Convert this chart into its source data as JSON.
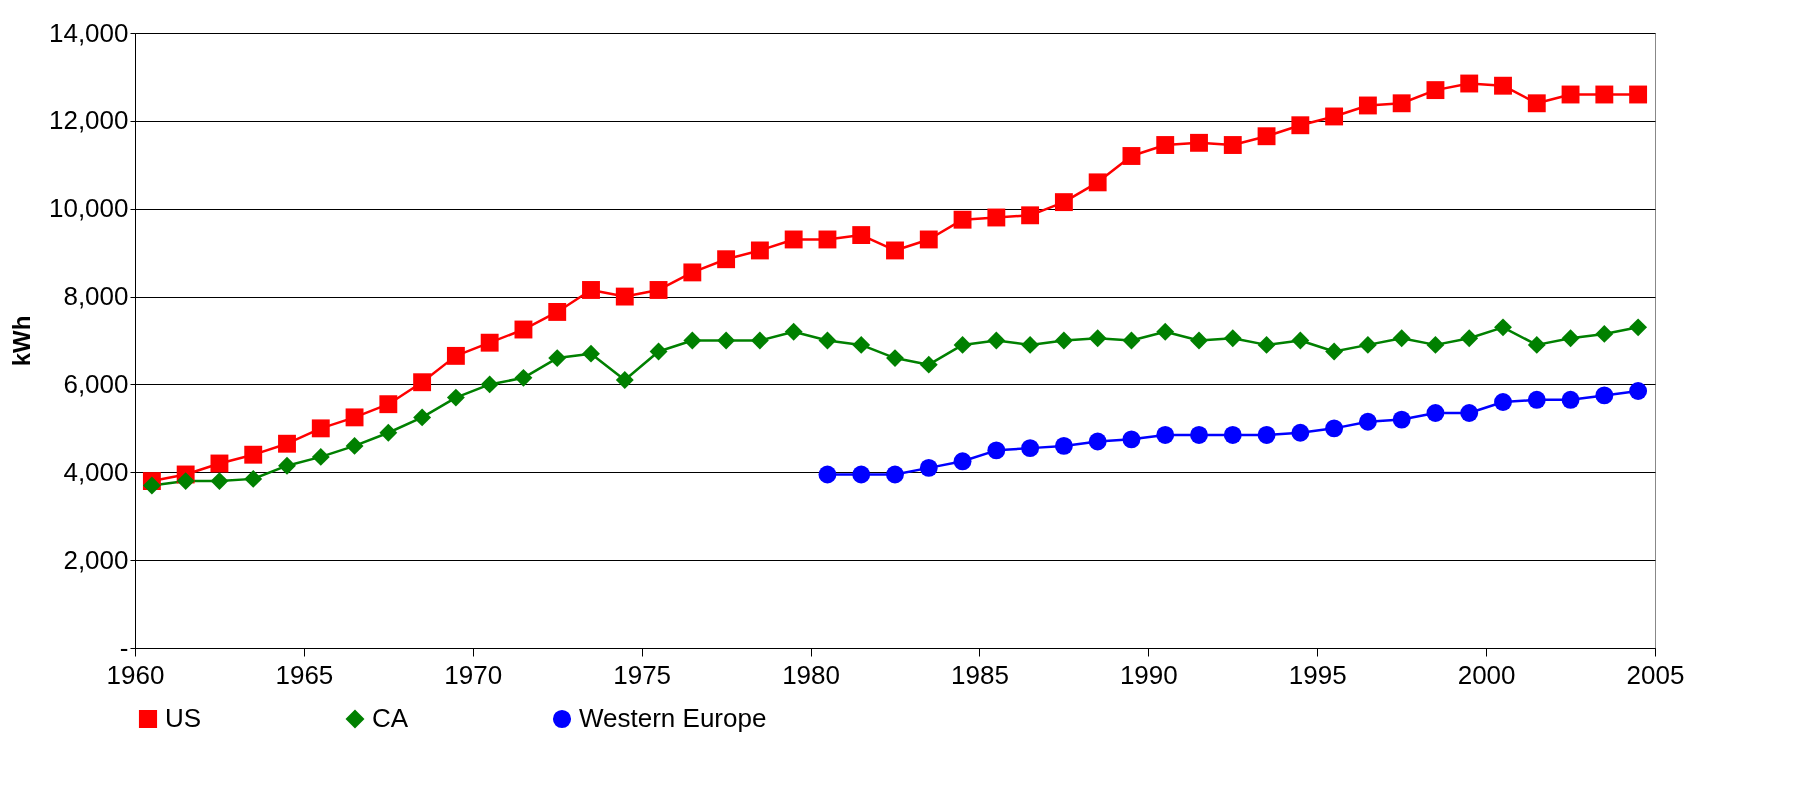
{
  "chart_data": {
    "type": "line",
    "ylabel": "kWh",
    "xlim": [
      1960,
      2005
    ],
    "xticks": [
      1960,
      1965,
      1970,
      1975,
      1980,
      1985,
      1990,
      1995,
      2000,
      2005
    ],
    "ylim": [
      0,
      14000
    ],
    "yticks": [
      {
        "value": 0,
        "label": "-"
      },
      {
        "value": 2000,
        "label": "2,000"
      },
      {
        "value": 4000,
        "label": "4,000"
      },
      {
        "value": 6000,
        "label": "6,000"
      },
      {
        "value": 8000,
        "label": "8,000"
      },
      {
        "value": 10000,
        "label": "10,000"
      },
      {
        "value": 12000,
        "label": "12,000"
      },
      {
        "value": 14000,
        "label": "14,000"
      }
    ],
    "grid": "y",
    "legend": "bottom",
    "x": [
      1960.5,
      1961.5,
      1962.5,
      1963.5,
      1964.5,
      1965.5,
      1966.5,
      1967.5,
      1968.5,
      1969.5,
      1970.5,
      1971.5,
      1972.5,
      1973.5,
      1974.5,
      1975.5,
      1976.5,
      1977.5,
      1978.5,
      1979.5,
      1980.5,
      1981.5,
      1982.5,
      1983.5,
      1984.5,
      1985.5,
      1986.5,
      1987.5,
      1988.5,
      1989.5,
      1990.5,
      1991.5,
      1992.5,
      1993.5,
      1994.5,
      1995.5,
      1996.5,
      1997.5,
      1998.5,
      1999.5,
      2000.5,
      2001.5,
      2002.5,
      2003.5,
      2004.5
    ],
    "series": [
      {
        "name": "US",
        "color": "#ff0000",
        "marker": "square",
        "values": [
          3800,
          3950,
          4200,
          4400,
          4650,
          5000,
          5250,
          5550,
          6050,
          6650,
          6950,
          7250,
          7650,
          8150,
          8000,
          8150,
          8550,
          8850,
          9050,
          9300,
          9300,
          9400,
          9050,
          9300,
          9750,
          9800,
          9850,
          10150,
          10600,
          11200,
          11450,
          11500,
          11450,
          11650,
          11900,
          12100,
          12350,
          12400,
          12700,
          12850,
          12800,
          12400,
          12600,
          12600,
          12600
        ]
      },
      {
        "name": "CA",
        "color": "#008000",
        "marker": "diamond",
        "values": [
          3700,
          3800,
          3800,
          3850,
          4150,
          4350,
          4600,
          4900,
          5250,
          5700,
          6000,
          6150,
          6600,
          6700,
          6100,
          6750,
          7000,
          7000,
          7000,
          7200,
          7000,
          6900,
          6600,
          6450,
          6900,
          7000,
          6900,
          7000,
          7050,
          7000,
          7200,
          7000,
          7050,
          6900,
          7000,
          6750,
          6900,
          7050,
          6900,
          7050,
          7300,
          6900,
          7050,
          7150,
          7300
        ]
      },
      {
        "name": "Western Europe",
        "color": "#0000ff",
        "marker": "circle",
        "x": [
          1980.5,
          1981.5,
          1982.5,
          1983.5,
          1984.5,
          1985.5,
          1986.5,
          1987.5,
          1988.5,
          1989.5,
          1990.5,
          1991.5,
          1992.5,
          1993.5,
          1994.5,
          1995.5,
          1996.5,
          1997.5,
          1998.5,
          1999.5,
          2000.5,
          2001.5,
          2002.5,
          2003.5,
          2004.5
        ],
        "values": [
          3950,
          3950,
          3950,
          4100,
          4250,
          4500,
          4550,
          4600,
          4700,
          4750,
          4850,
          4850,
          4850,
          4850,
          4900,
          5000,
          5150,
          5200,
          5350,
          5350,
          5600,
          5650,
          5650,
          5750,
          5850
        ]
      }
    ]
  }
}
